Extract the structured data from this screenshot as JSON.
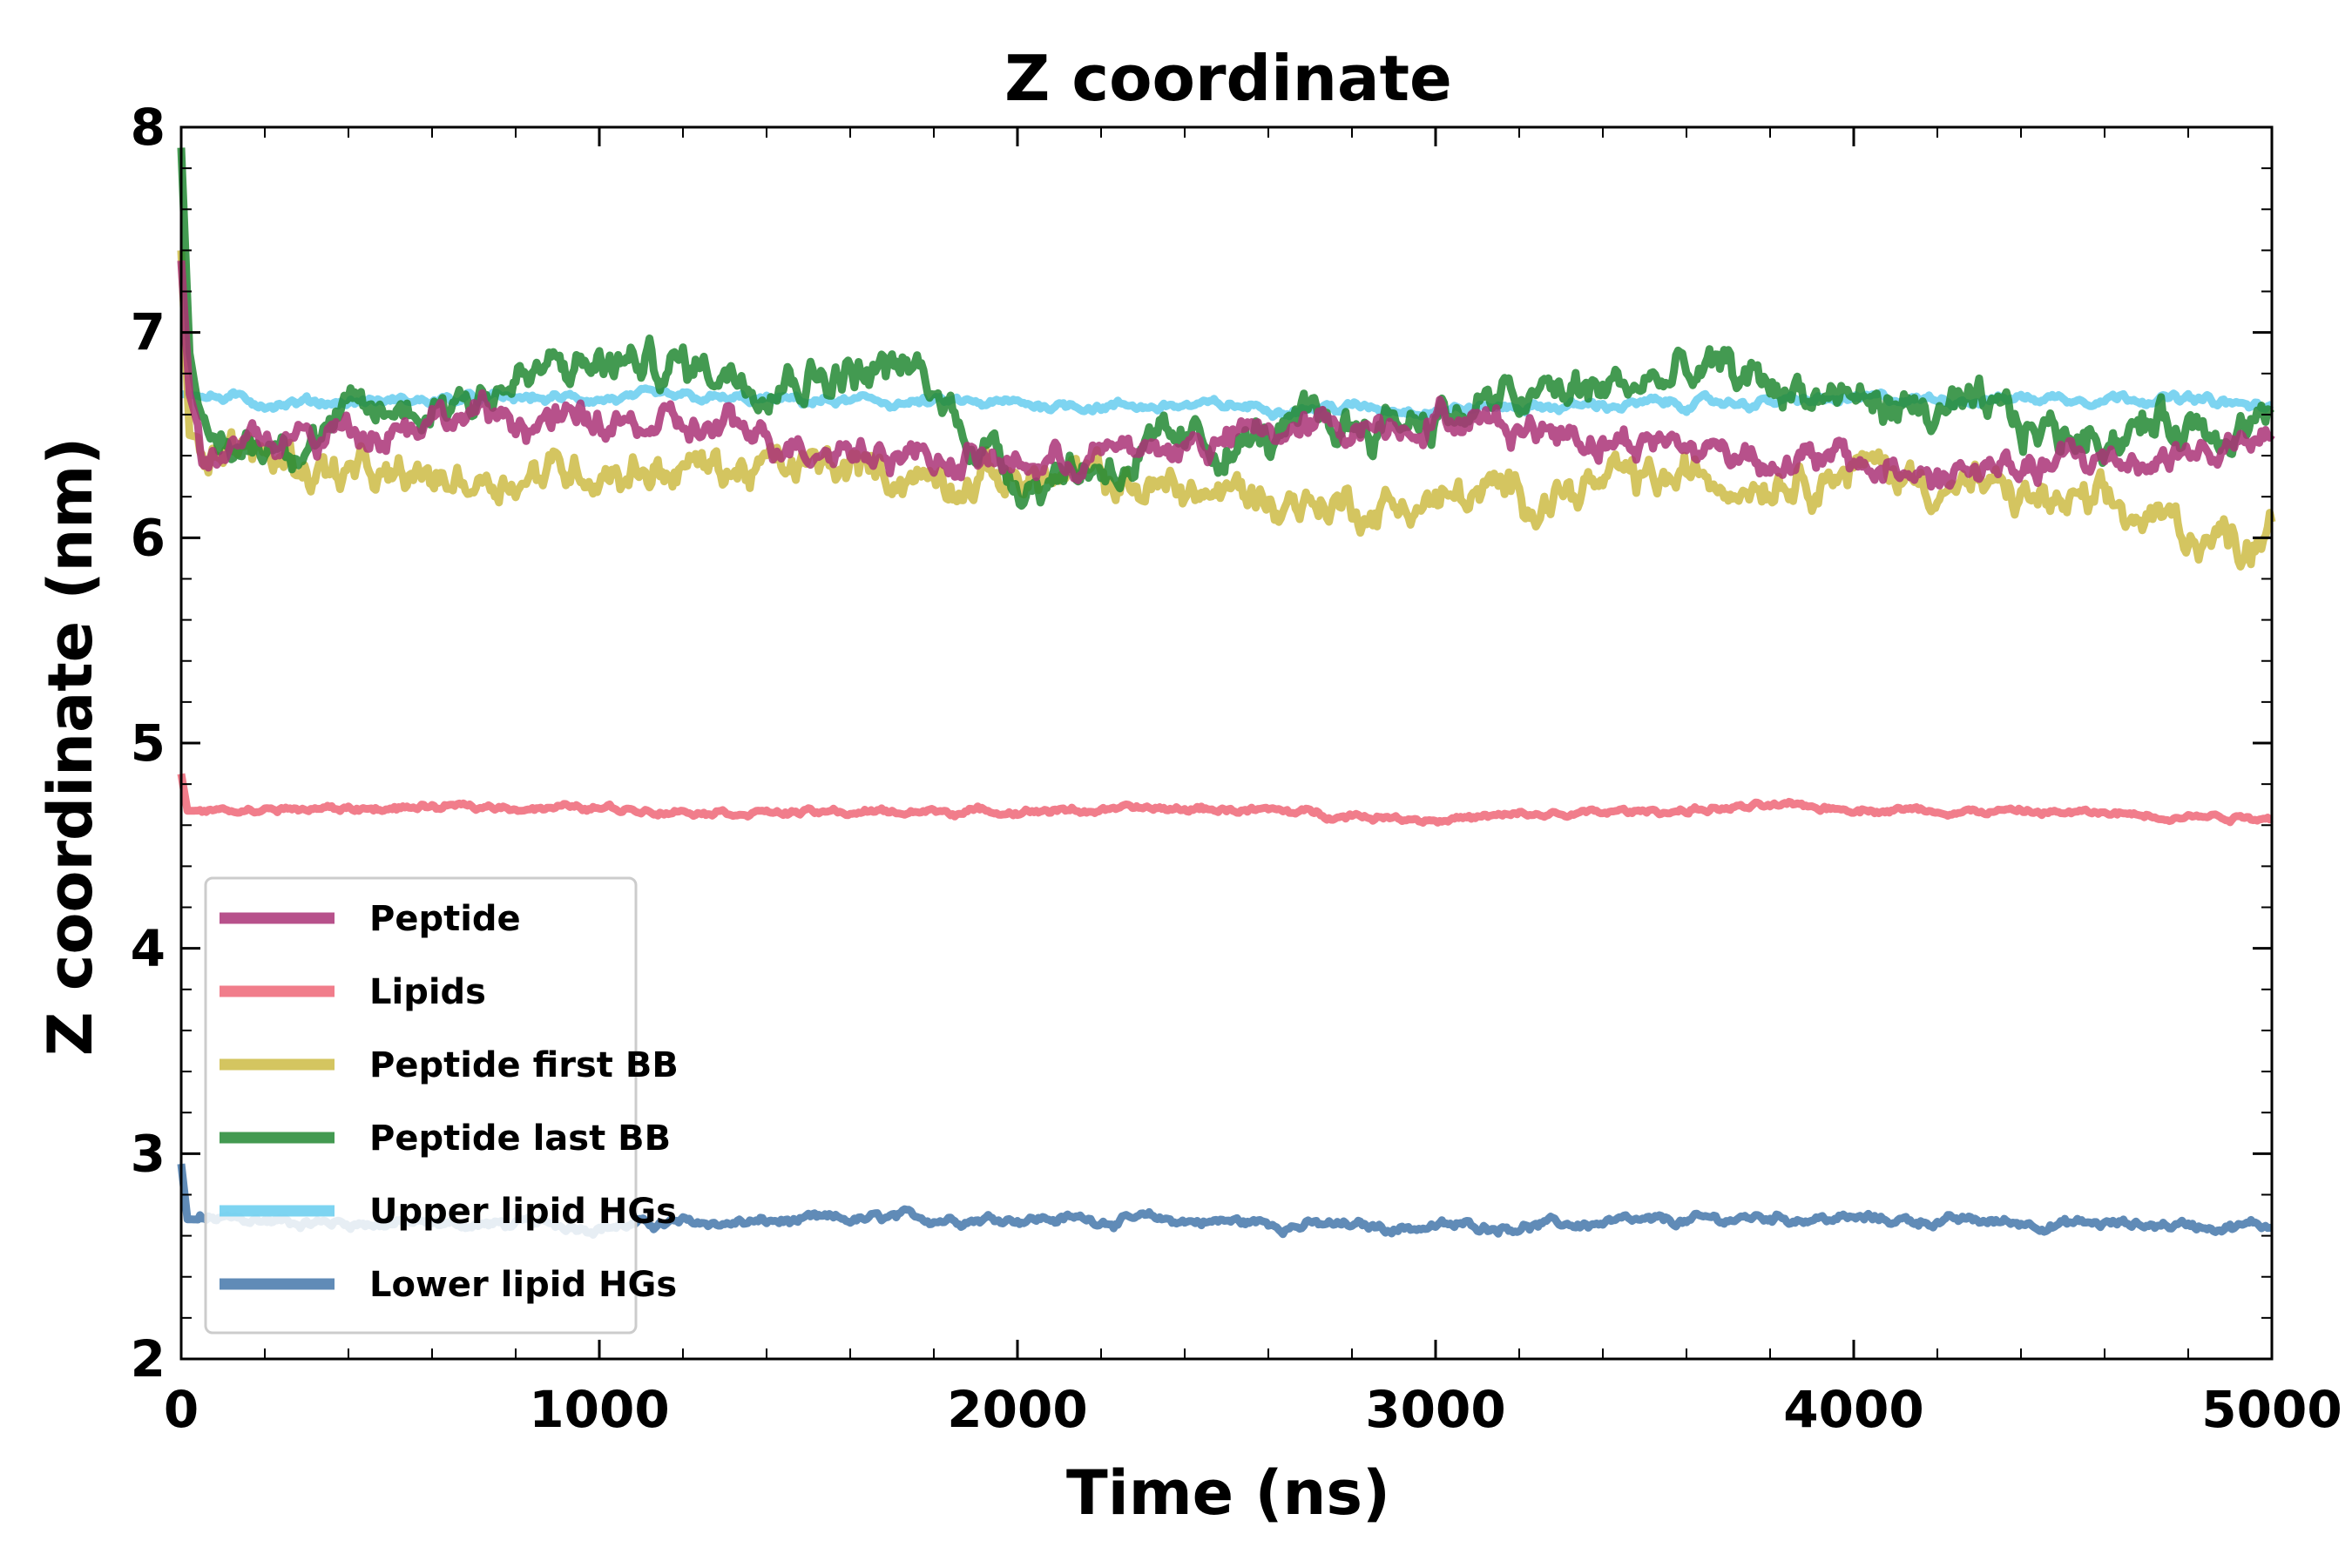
{
  "chart_data": {
    "type": "line",
    "title": "Z coordinate",
    "xlabel": "Time (ns)",
    "ylabel": "Z coordinate (nm)",
    "xlim": [
      0,
      5000
    ],
    "ylim": [
      2,
      8
    ],
    "xticks": [
      "0",
      "1000",
      "2000",
      "3000",
      "4000",
      "5000"
    ],
    "yticks": [
      "2",
      "3",
      "4",
      "5",
      "6",
      "7",
      "8"
    ],
    "grid": false,
    "legend_position": "lower-left",
    "series": [
      {
        "name": "Lower lipid HGs",
        "color": "#4477aa",
        "start_value": 2.95,
        "mean": 2.66,
        "fluctuation": 0.03,
        "points": [
          [
            0,
            2.95
          ],
          [
            15,
            2.68
          ],
          [
            500,
            2.66
          ],
          [
            1000,
            2.65
          ],
          [
            1500,
            2.67
          ],
          [
            1900,
            2.69
          ],
          [
            2500,
            2.67
          ],
          [
            2850,
            2.64
          ],
          [
            3500,
            2.66
          ],
          [
            3800,
            2.69
          ],
          [
            4500,
            2.66
          ],
          [
            5000,
            2.65
          ]
        ]
      },
      {
        "name": "Upper lipid HGs",
        "color": "#66ccee",
        "start_value": 6.7,
        "mean": 6.65,
        "fluctuation": 0.03,
        "points": [
          [
            0,
            6.7
          ],
          [
            200,
            6.66
          ],
          [
            1000,
            6.68
          ],
          [
            2000,
            6.65
          ],
          [
            3000,
            6.63
          ],
          [
            4000,
            6.67
          ],
          [
            4700,
            6.69
          ],
          [
            5000,
            6.63
          ]
        ]
      },
      {
        "name": "Peptide first BB",
        "color": "#ccbb44",
        "start_value": 7.4,
        "mean": 6.32,
        "fluctuation": 0.12,
        "points": [
          [
            0,
            7.4
          ],
          [
            20,
            6.5
          ],
          [
            500,
            6.25
          ],
          [
            1000,
            6.35
          ],
          [
            2000,
            6.3
          ],
          [
            2850,
            6.15
          ],
          [
            4000,
            6.35
          ],
          [
            4950,
            5.98
          ],
          [
            5000,
            6.15
          ]
        ]
      },
      {
        "name": "Peptide last BB",
        "color": "#228833",
        "start_value": 7.9,
        "mean": 6.5,
        "fluctuation": 0.13,
        "points": [
          [
            0,
            7.9
          ],
          [
            20,
            6.9
          ],
          [
            60,
            6.4
          ],
          [
            1000,
            6.85
          ],
          [
            1750,
            6.8
          ],
          [
            2000,
            6.3
          ],
          [
            3650,
            6.8
          ],
          [
            4500,
            6.5
          ],
          [
            5000,
            6.6
          ]
        ]
      },
      {
        "name": "Lipids",
        "color": "#ee6677",
        "start_value": 4.85,
        "mean": 4.65,
        "fluctuation": 0.02,
        "points": [
          [
            0,
            4.85
          ],
          [
            15,
            4.67
          ],
          [
            800,
            4.69
          ],
          [
            1500,
            4.66
          ],
          [
            2500,
            4.68
          ],
          [
            3000,
            4.63
          ],
          [
            3800,
            4.69
          ],
          [
            5000,
            4.64
          ]
        ]
      },
      {
        "name": "Peptide",
        "color": "#aa3377",
        "start_value": 7.35,
        "mean": 6.45,
        "fluctuation": 0.1,
        "points": [
          [
            0,
            7.35
          ],
          [
            20,
            6.7
          ],
          [
            60,
            6.4
          ],
          [
            600,
            6.6
          ],
          [
            1400,
            6.5
          ],
          [
            2000,
            6.35
          ],
          [
            3000,
            6.6
          ],
          [
            4200,
            6.3
          ],
          [
            5000,
            6.45
          ]
        ]
      }
    ],
    "legend_order": [
      "Peptide",
      "Lipids",
      "Peptide first BB",
      "Peptide last BB",
      "Upper lipid HGs",
      "Lower lipid HGs"
    ]
  }
}
